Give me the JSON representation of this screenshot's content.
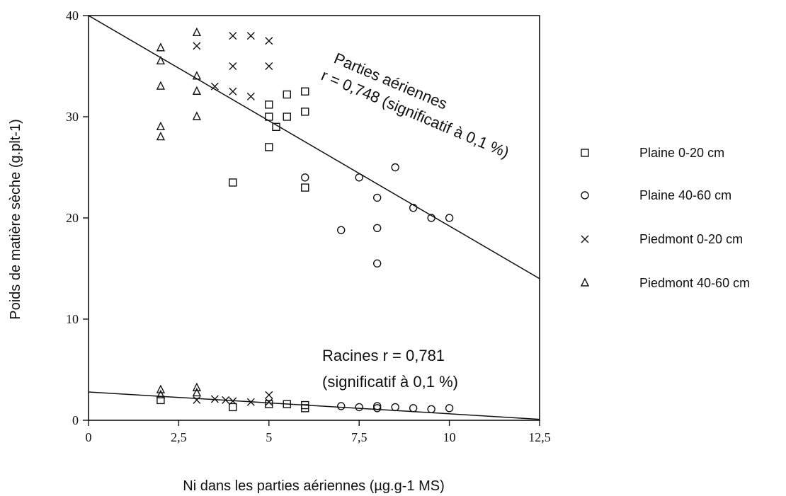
{
  "chart_data": {
    "type": "scatter",
    "title": "",
    "xlabel": "Ni dans les parties aériennes (µg.g-1 MS)",
    "ylabel": "Poids de matière sèche (g.plt-1)",
    "xlim": [
      0,
      12.5
    ],
    "ylim": [
      0,
      40
    ],
    "xticks": [
      0,
      2.5,
      5,
      7.5,
      10,
      12.5
    ],
    "xtick_labels": [
      "0",
      "2,5",
      "5",
      "7,5",
      "10",
      "12,5"
    ],
    "yticks": [
      0,
      10,
      20,
      30,
      40
    ],
    "ytick_labels": [
      "0",
      "10",
      "20",
      "30",
      "40"
    ],
    "grid": false,
    "legend": "right",
    "series": [
      {
        "name": "Plaine 0-20 cm",
        "marker": "square",
        "points": [
          [
            4,
            23.5
          ],
          [
            5,
            31.2
          ],
          [
            5,
            30
          ],
          [
            5,
            27
          ],
          [
            5.2,
            29
          ],
          [
            5.5,
            32.2
          ],
          [
            5.5,
            30
          ],
          [
            6,
            32.5
          ],
          [
            6,
            30.5
          ],
          [
            6,
            23
          ],
          [
            2,
            2
          ],
          [
            4,
            1.3
          ],
          [
            5,
            1.6
          ],
          [
            5.5,
            1.6
          ],
          [
            6,
            1.5
          ],
          [
            6,
            1.2
          ]
        ]
      },
      {
        "name": "Plaine 40-60 cm",
        "marker": "circle",
        "points": [
          [
            6,
            24
          ],
          [
            7,
            18.8
          ],
          [
            7.5,
            24
          ],
          [
            8,
            22
          ],
          [
            8,
            19
          ],
          [
            8,
            15.5
          ],
          [
            8.5,
            25
          ],
          [
            9,
            21
          ],
          [
            9.5,
            20
          ],
          [
            10,
            20
          ],
          [
            7,
            1.4
          ],
          [
            7.5,
            1.3
          ],
          [
            8,
            1.4
          ],
          [
            8,
            1.2
          ],
          [
            8.5,
            1.3
          ],
          [
            9,
            1.2
          ],
          [
            9.5,
            1.1
          ],
          [
            10,
            1.2
          ]
        ]
      },
      {
        "name": "Piedmont 0-20 cm",
        "marker": "x",
        "points": [
          [
            3,
            37
          ],
          [
            3.5,
            33
          ],
          [
            4,
            38
          ],
          [
            4,
            35
          ],
          [
            4,
            32.5
          ],
          [
            4.5,
            38
          ],
          [
            4.5,
            32
          ],
          [
            5,
            37.5
          ],
          [
            5,
            35
          ],
          [
            3,
            2
          ],
          [
            3.5,
            2.1
          ],
          [
            3.8,
            2
          ],
          [
            4,
            1.9
          ],
          [
            4.5,
            1.8
          ],
          [
            5,
            2.5
          ],
          [
            5,
            1.8
          ]
        ]
      },
      {
        "name": "Piedmont 40-60 cm",
        "marker": "triangle",
        "points": [
          [
            2,
            36.8
          ],
          [
            2,
            35.5
          ],
          [
            2,
            33
          ],
          [
            2,
            29
          ],
          [
            2,
            28
          ],
          [
            3,
            38.3
          ],
          [
            3,
            34
          ],
          [
            3,
            32.5
          ],
          [
            3,
            30
          ],
          [
            2,
            3
          ],
          [
            2,
            2.5
          ],
          [
            3,
            3.2
          ],
          [
            3,
            2.7
          ]
        ]
      }
    ],
    "regression_lines": [
      {
        "name": "Parties aériennes",
        "x": [
          0,
          12.5
        ],
        "y": [
          40,
          14
        ]
      },
      {
        "name": "Racines",
        "x": [
          0,
          12.5
        ],
        "y": [
          2.8,
          0.1
        ]
      }
    ],
    "annotations": {
      "aerial_line1": "Parties aériennes",
      "aerial_line2": "r = 0,748  (significatif à 0,1 %)",
      "roots_line1": "Racines  r = 0,781",
      "roots_line2": "(significatif à 0,1 %)"
    }
  }
}
